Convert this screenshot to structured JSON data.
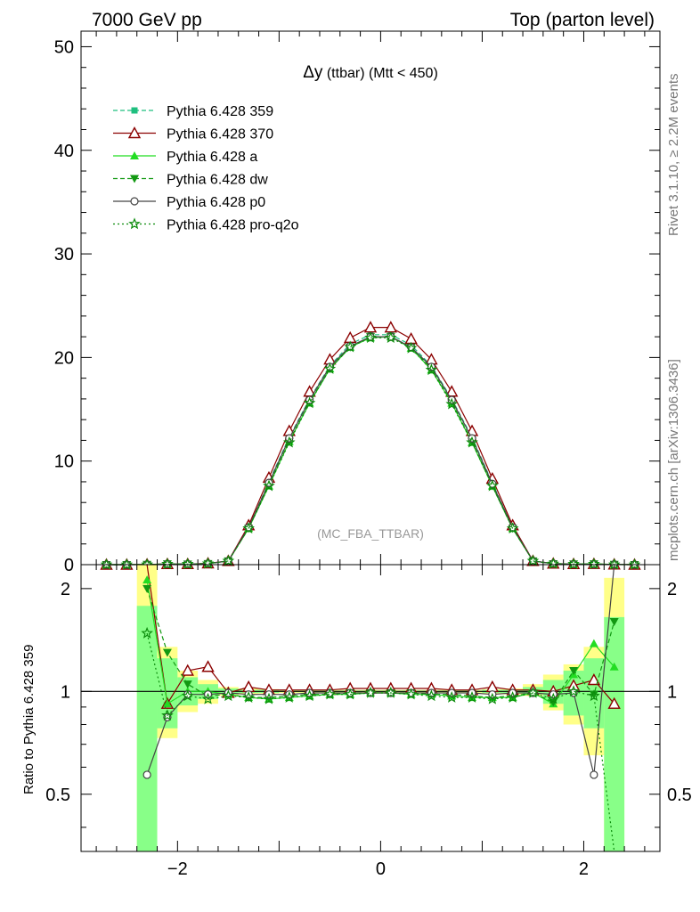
{
  "header": {
    "left": "7000 GeV pp",
    "right": "Top (parton level)"
  },
  "side_labels": {
    "rivet": "Rivet 3.1.10, ≥ 2.2M events",
    "mcplots": "mcplots.cern.ch [arXiv:1306.3436]"
  },
  "plot": {
    "title_symbol": "Δy",
    "title_rest": " (ttbar) (Mtt < 450)",
    "watermark": "(MC_FBA_TTBAR)"
  },
  "ratio_ylabel": "Ratio to Pythia 6.428 359",
  "colors": {
    "g359": "#1fbf7f",
    "r370": "#8b0000",
    "a": "#22dd22",
    "dw": "#129912",
    "p0": "#444444",
    "pq2o": "#0c8c0c",
    "band_yellow": "#ffff88",
    "band_green": "#88ff88"
  },
  "chart_data": [
    {
      "type": "line",
      "title": "Δy (ttbar) (Mtt < 450)",
      "xlim": [
        -2.95,
        2.75
      ],
      "ylim": [
        0,
        51.5
      ],
      "x_ticks": [
        -2,
        0,
        2
      ],
      "y_ticks": [
        0,
        10,
        20,
        30,
        40,
        50
      ],
      "x": [
        -2.7,
        -2.5,
        -2.3,
        -2.1,
        -1.9,
        -1.7,
        -1.5,
        -1.3,
        -1.1,
        -0.9,
        -0.7,
        -0.5,
        -0.3,
        -0.1,
        0.1,
        0.3,
        0.5,
        0.7,
        0.9,
        1.1,
        1.3,
        1.5,
        1.7,
        1.9,
        2.1,
        2.3,
        2.5
      ],
      "series": [
        {
          "name": "Pythia 6.428 359",
          "marker": "square",
          "dash": "5,3",
          "color_key": "g359",
          "values": [
            0,
            0,
            0.01,
            0.06,
            0.05,
            0.1,
            0.35,
            3.6,
            8.0,
            12.3,
            16.0,
            19.2,
            21.3,
            22.2,
            22.2,
            21.2,
            19.2,
            16.0,
            12.3,
            7.9,
            3.6,
            0.35,
            0.1,
            0.05,
            0.06,
            0.01,
            0
          ]
        },
        {
          "name": "Pythia 6.428 370",
          "marker": "triangle-open",
          "dash": "",
          "color_key": "r370",
          "values": [
            0,
            0,
            0.03,
            0.06,
            0.06,
            0.12,
            0.36,
            3.8,
            8.4,
            12.9,
            16.7,
            19.8,
            21.9,
            22.9,
            22.9,
            21.8,
            19.8,
            16.7,
            12.9,
            8.3,
            3.8,
            0.36,
            0.1,
            0.06,
            0.07,
            0.02,
            0
          ]
        },
        {
          "name": "Pythia 6.428 a",
          "marker": "triangle",
          "dash": "",
          "color_key": "a",
          "values": [
            0,
            0,
            0.02,
            0.06,
            0.05,
            0.1,
            0.35,
            3.5,
            7.6,
            11.9,
            15.6,
            18.9,
            21.0,
            21.9,
            22.0,
            20.9,
            18.8,
            15.6,
            11.8,
            7.6,
            3.5,
            0.35,
            0.1,
            0.06,
            0.08,
            0.01,
            0
          ]
        },
        {
          "name": "Pythia 6.428 dw",
          "marker": "triangle-down",
          "dash": "5,3",
          "color_key": "dw",
          "values": [
            0,
            0,
            0.02,
            0.08,
            0.05,
            0.1,
            0.35,
            3.5,
            7.7,
            11.9,
            15.7,
            18.9,
            21.0,
            22.0,
            22.0,
            21.0,
            18.9,
            15.7,
            11.9,
            7.6,
            3.5,
            0.35,
            0.09,
            0.06,
            0.07,
            0.02,
            0
          ]
        },
        {
          "name": "Pythia 6.428 p0",
          "marker": "circle-open",
          "dash": "",
          "color_key": "p0",
          "values": [
            0,
            0,
            0.01,
            0.05,
            0.05,
            0.1,
            0.35,
            3.6,
            7.9,
            12.2,
            15.9,
            19.1,
            21.1,
            22.0,
            22.0,
            21.0,
            19.1,
            15.9,
            12.2,
            7.8,
            3.6,
            0.35,
            0.1,
            0.05,
            0.04,
            0.03,
            0
          ]
        },
        {
          "name": "Pythia 6.428 pro-q2o",
          "marker": "star-open",
          "dash": "2,3",
          "color_key": "pq2o",
          "values": [
            0,
            0,
            0.01,
            0.05,
            0.05,
            0.1,
            0.35,
            3.5,
            7.6,
            11.8,
            15.6,
            18.9,
            21.0,
            21.9,
            21.9,
            20.9,
            18.8,
            15.5,
            11.8,
            7.6,
            3.5,
            0.35,
            0.09,
            0.05,
            0.06,
            0.01,
            0
          ]
        }
      ]
    },
    {
      "type": "line",
      "ylabel": "Ratio to Pythia 6.428 359",
      "xlim": [
        -2.95,
        2.75
      ],
      "ylim": [
        0.34,
        2.35
      ],
      "x_ticks": [
        -2,
        0,
        2
      ],
      "y_ticks": [
        0.5,
        1,
        2
      ],
      "x": [
        -2.3,
        -2.1,
        -1.9,
        -1.7,
        -1.5,
        -1.3,
        -1.1,
        -0.9,
        -0.7,
        -0.5,
        -0.3,
        -0.1,
        0.1,
        0.3,
        0.5,
        0.7,
        0.9,
        1.1,
        1.3,
        1.5,
        1.7,
        1.9,
        2.1,
        2.3
      ],
      "band_yellow": [
        [
          0.34,
          2.35
        ],
        [
          0.73,
          1.35
        ],
        [
          0.87,
          1.15
        ],
        [
          0.92,
          1.08
        ],
        [
          0.97,
          1.03
        ],
        [
          0.98,
          1.02
        ],
        [
          0.985,
          1.015
        ],
        [
          0.99,
          1.01
        ],
        [
          0.99,
          1.01
        ],
        [
          0.99,
          1.01
        ],
        [
          0.99,
          1.01
        ],
        [
          0.99,
          1.01
        ],
        [
          0.99,
          1.01
        ],
        [
          0.99,
          1.01
        ],
        [
          0.99,
          1.01
        ],
        [
          0.99,
          1.01
        ],
        [
          0.99,
          1.01
        ],
        [
          0.985,
          1.015
        ],
        [
          0.98,
          1.02
        ],
        [
          0.97,
          1.05
        ],
        [
          0.88,
          1.12
        ],
        [
          0.8,
          1.2
        ],
        [
          0.65,
          1.35
        ],
        [
          0.34,
          2.15
        ]
      ],
      "band_green": [
        [
          0.34,
          1.78
        ],
        [
          0.78,
          1.25
        ],
        [
          0.91,
          1.1
        ],
        [
          0.95,
          1.05
        ],
        [
          0.98,
          1.02
        ],
        [
          0.99,
          1.01
        ],
        [
          0.99,
          1.01
        ],
        [
          0.995,
          1.005
        ],
        [
          0.995,
          1.005
        ],
        [
          0.995,
          1.005
        ],
        [
          0.995,
          1.005
        ],
        [
          0.995,
          1.005
        ],
        [
          0.995,
          1.005
        ],
        [
          0.995,
          1.005
        ],
        [
          0.995,
          1.005
        ],
        [
          0.995,
          1.005
        ],
        [
          0.995,
          1.005
        ],
        [
          0.99,
          1.01
        ],
        [
          0.99,
          1.01
        ],
        [
          0.98,
          1.03
        ],
        [
          0.92,
          1.08
        ],
        [
          0.85,
          1.15
        ],
        [
          0.78,
          1.25
        ],
        [
          0.34,
          1.65
        ]
      ],
      "series": [
        {
          "name": "Pythia 6.428 370",
          "color_key": "r370",
          "marker": "triangle-open",
          "dash": "",
          "values": [
            3.0,
            0.92,
            1.15,
            1.18,
            0.99,
            1.03,
            1.01,
            1.01,
            1.01,
            1.01,
            1.02,
            1.02,
            1.02,
            1.02,
            1.02,
            1.01,
            1.01,
            1.03,
            1.01,
            1.01,
            1.0,
            1.04,
            1.08,
            0.92
          ]
        },
        {
          "name": "Pythia 6.428 a",
          "color_key": "a",
          "marker": "triangle",
          "dash": "",
          "values": [
            2.12,
            0.92,
            1.0,
            1.0,
            0.98,
            0.96,
            0.95,
            0.96,
            0.97,
            0.98,
            0.98,
            0.99,
            0.99,
            0.98,
            0.98,
            0.97,
            0.96,
            0.96,
            0.96,
            0.99,
            0.92,
            1.12,
            1.38,
            1.18
          ]
        },
        {
          "name": "Pythia 6.428 dw",
          "color_key": "dw",
          "marker": "triangle-down",
          "dash": "5,3",
          "values": [
            2.0,
            1.3,
            1.05,
            0.97,
            0.98,
            0.96,
            0.96,
            0.97,
            0.98,
            0.98,
            0.99,
            0.99,
            0.99,
            0.99,
            0.98,
            0.98,
            0.97,
            0.96,
            0.97,
            0.99,
            0.93,
            1.15,
            0.98,
            1.6
          ]
        },
        {
          "name": "Pythia 6.428 p0",
          "color_key": "p0",
          "marker": "circle-open",
          "dash": "",
          "values": [
            0.57,
            0.84,
            0.98,
            0.98,
            0.99,
            0.98,
            0.98,
            0.98,
            0.99,
            0.99,
            0.99,
            0.99,
            0.99,
            0.99,
            0.99,
            0.99,
            0.99,
            0.98,
            0.99,
            0.99,
            0.98,
            0.99,
            0.57,
            3.0
          ]
        },
        {
          "name": "Pythia 6.428 pro-q2o",
          "color_key": "pq2o",
          "marker": "star-open",
          "dash": "2,3",
          "values": [
            1.48,
            0.85,
            0.97,
            0.95,
            0.97,
            0.96,
            0.95,
            0.96,
            0.97,
            0.98,
            0.98,
            0.99,
            0.99,
            0.98,
            0.97,
            0.96,
            0.96,
            0.95,
            0.96,
            0.99,
            0.95,
            1.0,
            0.97,
            0.1
          ]
        }
      ]
    }
  ]
}
